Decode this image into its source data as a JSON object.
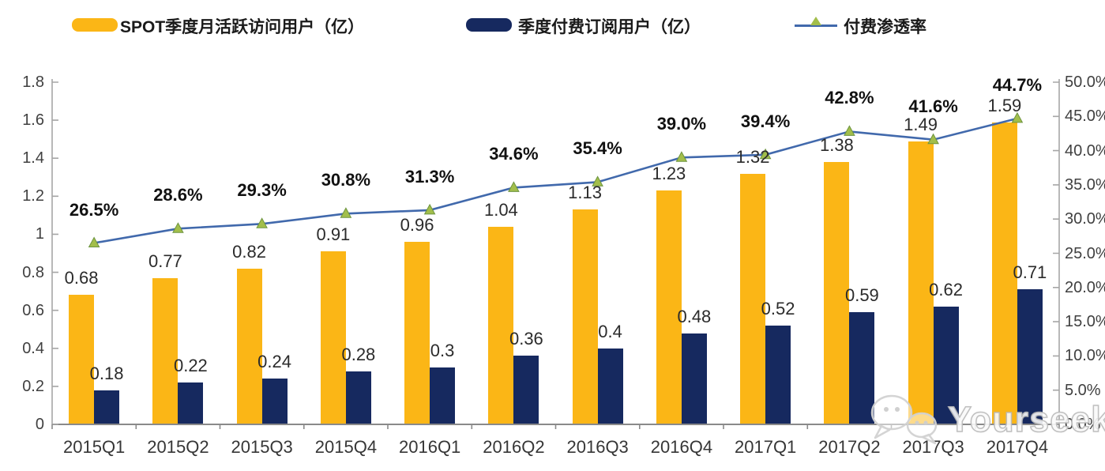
{
  "legend": {
    "items": [
      {
        "label": "SPOT季度月活跃访问用户（亿）",
        "type": "bar",
        "color": "#FBB616"
      },
      {
        "label": "季度付费订阅用户（亿）",
        "type": "bar",
        "color": "#16295F"
      },
      {
        "label": "付费渗透率",
        "type": "line",
        "color": "#4169AC",
        "marker_color": "#A2BE4B",
        "marker": "triangle"
      }
    ]
  },
  "chart_data": {
    "type": "bar",
    "subtype": "grouped-bars-with-line",
    "categories": [
      "2015Q1",
      "2015Q2",
      "2015Q3",
      "2015Q4",
      "2016Q1",
      "2016Q2",
      "2016Q3",
      "2016Q4",
      "2017Q1",
      "2017Q2",
      "2017Q3",
      "2017Q4"
    ],
    "series": [
      {
        "name": "SPOT季度月活跃访问用户（亿）",
        "type": "bar",
        "axis": "left",
        "color": "#FBB616",
        "values": [
          0.68,
          0.77,
          0.82,
          0.91,
          0.96,
          1.04,
          1.13,
          1.23,
          1.32,
          1.38,
          1.49,
          1.59
        ],
        "labels": [
          "0.68",
          "0.77",
          "0.82",
          "0.91",
          "0.96",
          "1.04",
          "1.13",
          "1.23",
          "1.32",
          "1.38",
          "1.49",
          "1.59"
        ]
      },
      {
        "name": "季度付费订阅用户（亿）",
        "type": "bar",
        "axis": "left",
        "color": "#16295F",
        "values": [
          0.18,
          0.22,
          0.24,
          0.28,
          0.3,
          0.36,
          0.4,
          0.48,
          0.52,
          0.59,
          0.62,
          0.71
        ],
        "labels": [
          "0.18",
          "0.22",
          "0.24",
          "0.28",
          "0.3",
          "0.36",
          "0.4",
          "0.48",
          "0.52",
          "0.59",
          "0.62",
          "0.71"
        ]
      },
      {
        "name": "付费渗透率",
        "type": "line",
        "axis": "right",
        "color": "#4169AC",
        "marker_color": "#A2BE4B",
        "values": [
          26.5,
          28.6,
          29.3,
          30.8,
          31.3,
          34.6,
          35.4,
          39.0,
          39.4,
          42.8,
          41.6,
          44.7
        ],
        "labels": [
          "26.5%",
          "28.6%",
          "29.3%",
          "30.8%",
          "31.3%",
          "34.6%",
          "35.4%",
          "39.0%",
          "39.4%",
          "42.8%",
          "41.6%",
          "44.7%"
        ]
      }
    ],
    "left_axis": {
      "min": 0,
      "max": 1.8,
      "ticks": [
        "1.8",
        "1.6",
        "1.4",
        "1.2",
        "1",
        "0.8",
        "0.6",
        "0.4",
        "0.2",
        "0"
      ]
    },
    "right_axis": {
      "min": 0,
      "max": 50,
      "ticks": [
        "50.0%",
        "45.0%",
        "40.0%",
        "35.0%",
        "30.0%",
        "25.0%",
        "20.0%",
        "15.0%",
        "10.0%",
        "5.0%",
        "0.0%"
      ]
    },
    "grid": false,
    "legend_position": "top",
    "title": ""
  },
  "watermark": {
    "text": "Yourseeker",
    "icon": "chat-bubbles-icon"
  }
}
